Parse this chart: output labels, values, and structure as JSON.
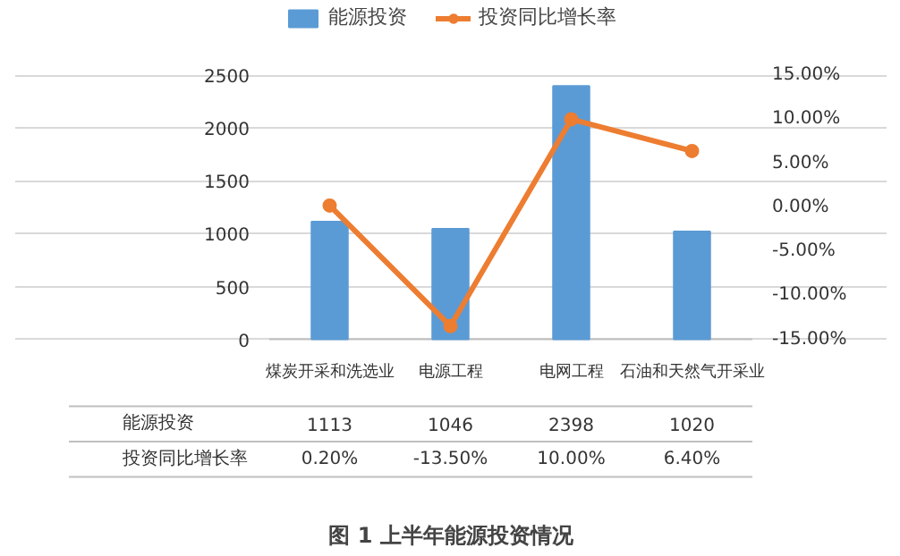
{
  "chart_data": {
    "type": "bar",
    "title": "图 1 上半年能源投资情况",
    "categories": [
      "煤炭开采和洗选业",
      "电源工程",
      "电网工程",
      "石油和天然气开采业"
    ],
    "series": [
      {
        "name": "能源投资",
        "color": "#5b9bd5",
        "values": [
          1113,
          1046,
          2398,
          1020
        ],
        "value_labels": [
          "1113",
          "1046",
          "2398",
          "1020"
        ]
      },
      {
        "name": "投资同比增长率",
        "type": "line",
        "axis": "y2",
        "color": "#ed7d31",
        "values": [
          0.2,
          -13.5,
          10.0,
          6.4
        ],
        "value_labels": [
          "0.20%",
          "-13.50%",
          "10.00%",
          "6.40%"
        ]
      }
    ],
    "ylim": [
      0,
      2500
    ],
    "yticks": [
      0,
      500,
      1000,
      1500,
      2000,
      2500
    ],
    "y2lim": [
      -15,
      15
    ],
    "y2ticks": [
      {
        "value": -15,
        "label": "-15.00%"
      },
      {
        "value": -10,
        "label": "-10.00%"
      },
      {
        "value": -5,
        "label": "-5.00%"
      },
      {
        "value": 0,
        "label": "0.00%"
      },
      {
        "value": 5,
        "label": "5.00%"
      },
      {
        "value": 10,
        "label": "10.00%"
      },
      {
        "value": 15,
        "label": "15.00%"
      }
    ],
    "grid": "y",
    "legend": "top",
    "marker": "circle",
    "line_style": "solid"
  }
}
